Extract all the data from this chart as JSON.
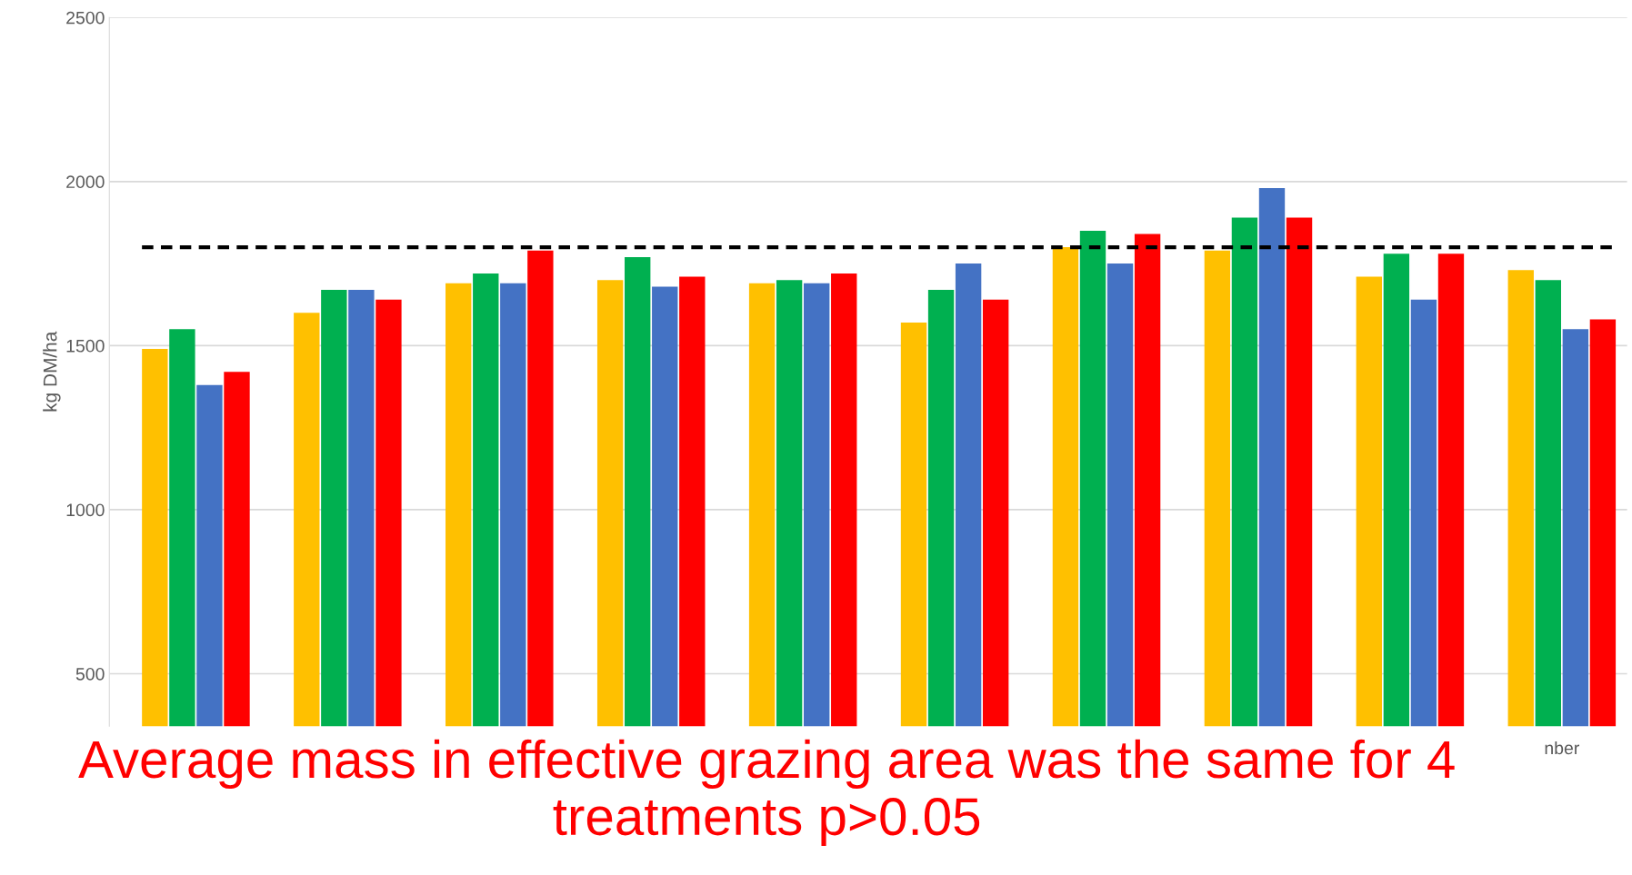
{
  "chart_data": {
    "type": "bar",
    "categories": [
      null,
      null,
      null,
      null,
      null,
      null,
      null,
      null,
      null,
      "nber"
    ],
    "series": [
      {
        "color": "#ffc000",
        "values": [
          1490,
          1600,
          1690,
          1700,
          1690,
          1570,
          1800,
          1790,
          1710,
          1730
        ]
      },
      {
        "color": "#00b050",
        "values": [
          1550,
          1670,
          1720,
          1770,
          1700,
          1670,
          1850,
          1890,
          1780,
          1700
        ]
      },
      {
        "color": "#4472c4",
        "values": [
          1380,
          1670,
          1690,
          1680,
          1690,
          1750,
          1750,
          1980,
          1640,
          1550
        ]
      },
      {
        "color": "#ff0000",
        "values": [
          1420,
          1640,
          1790,
          1710,
          1720,
          1640,
          1840,
          1890,
          1780,
          1580
        ]
      }
    ],
    "ylabel": "kg DM/ha",
    "ylim": [
      340,
      2500
    ],
    "yticks": [
      500,
      1000,
      1500,
      2000,
      2500
    ],
    "grid": "y",
    "ref_lines": [
      {
        "axis": "y",
        "value": 1800,
        "color": "#000000",
        "line_style": "dashed"
      }
    ],
    "annotations": [
      "Average mass in effective grazing area was the same for 4 treatments p>0.05"
    ]
  }
}
